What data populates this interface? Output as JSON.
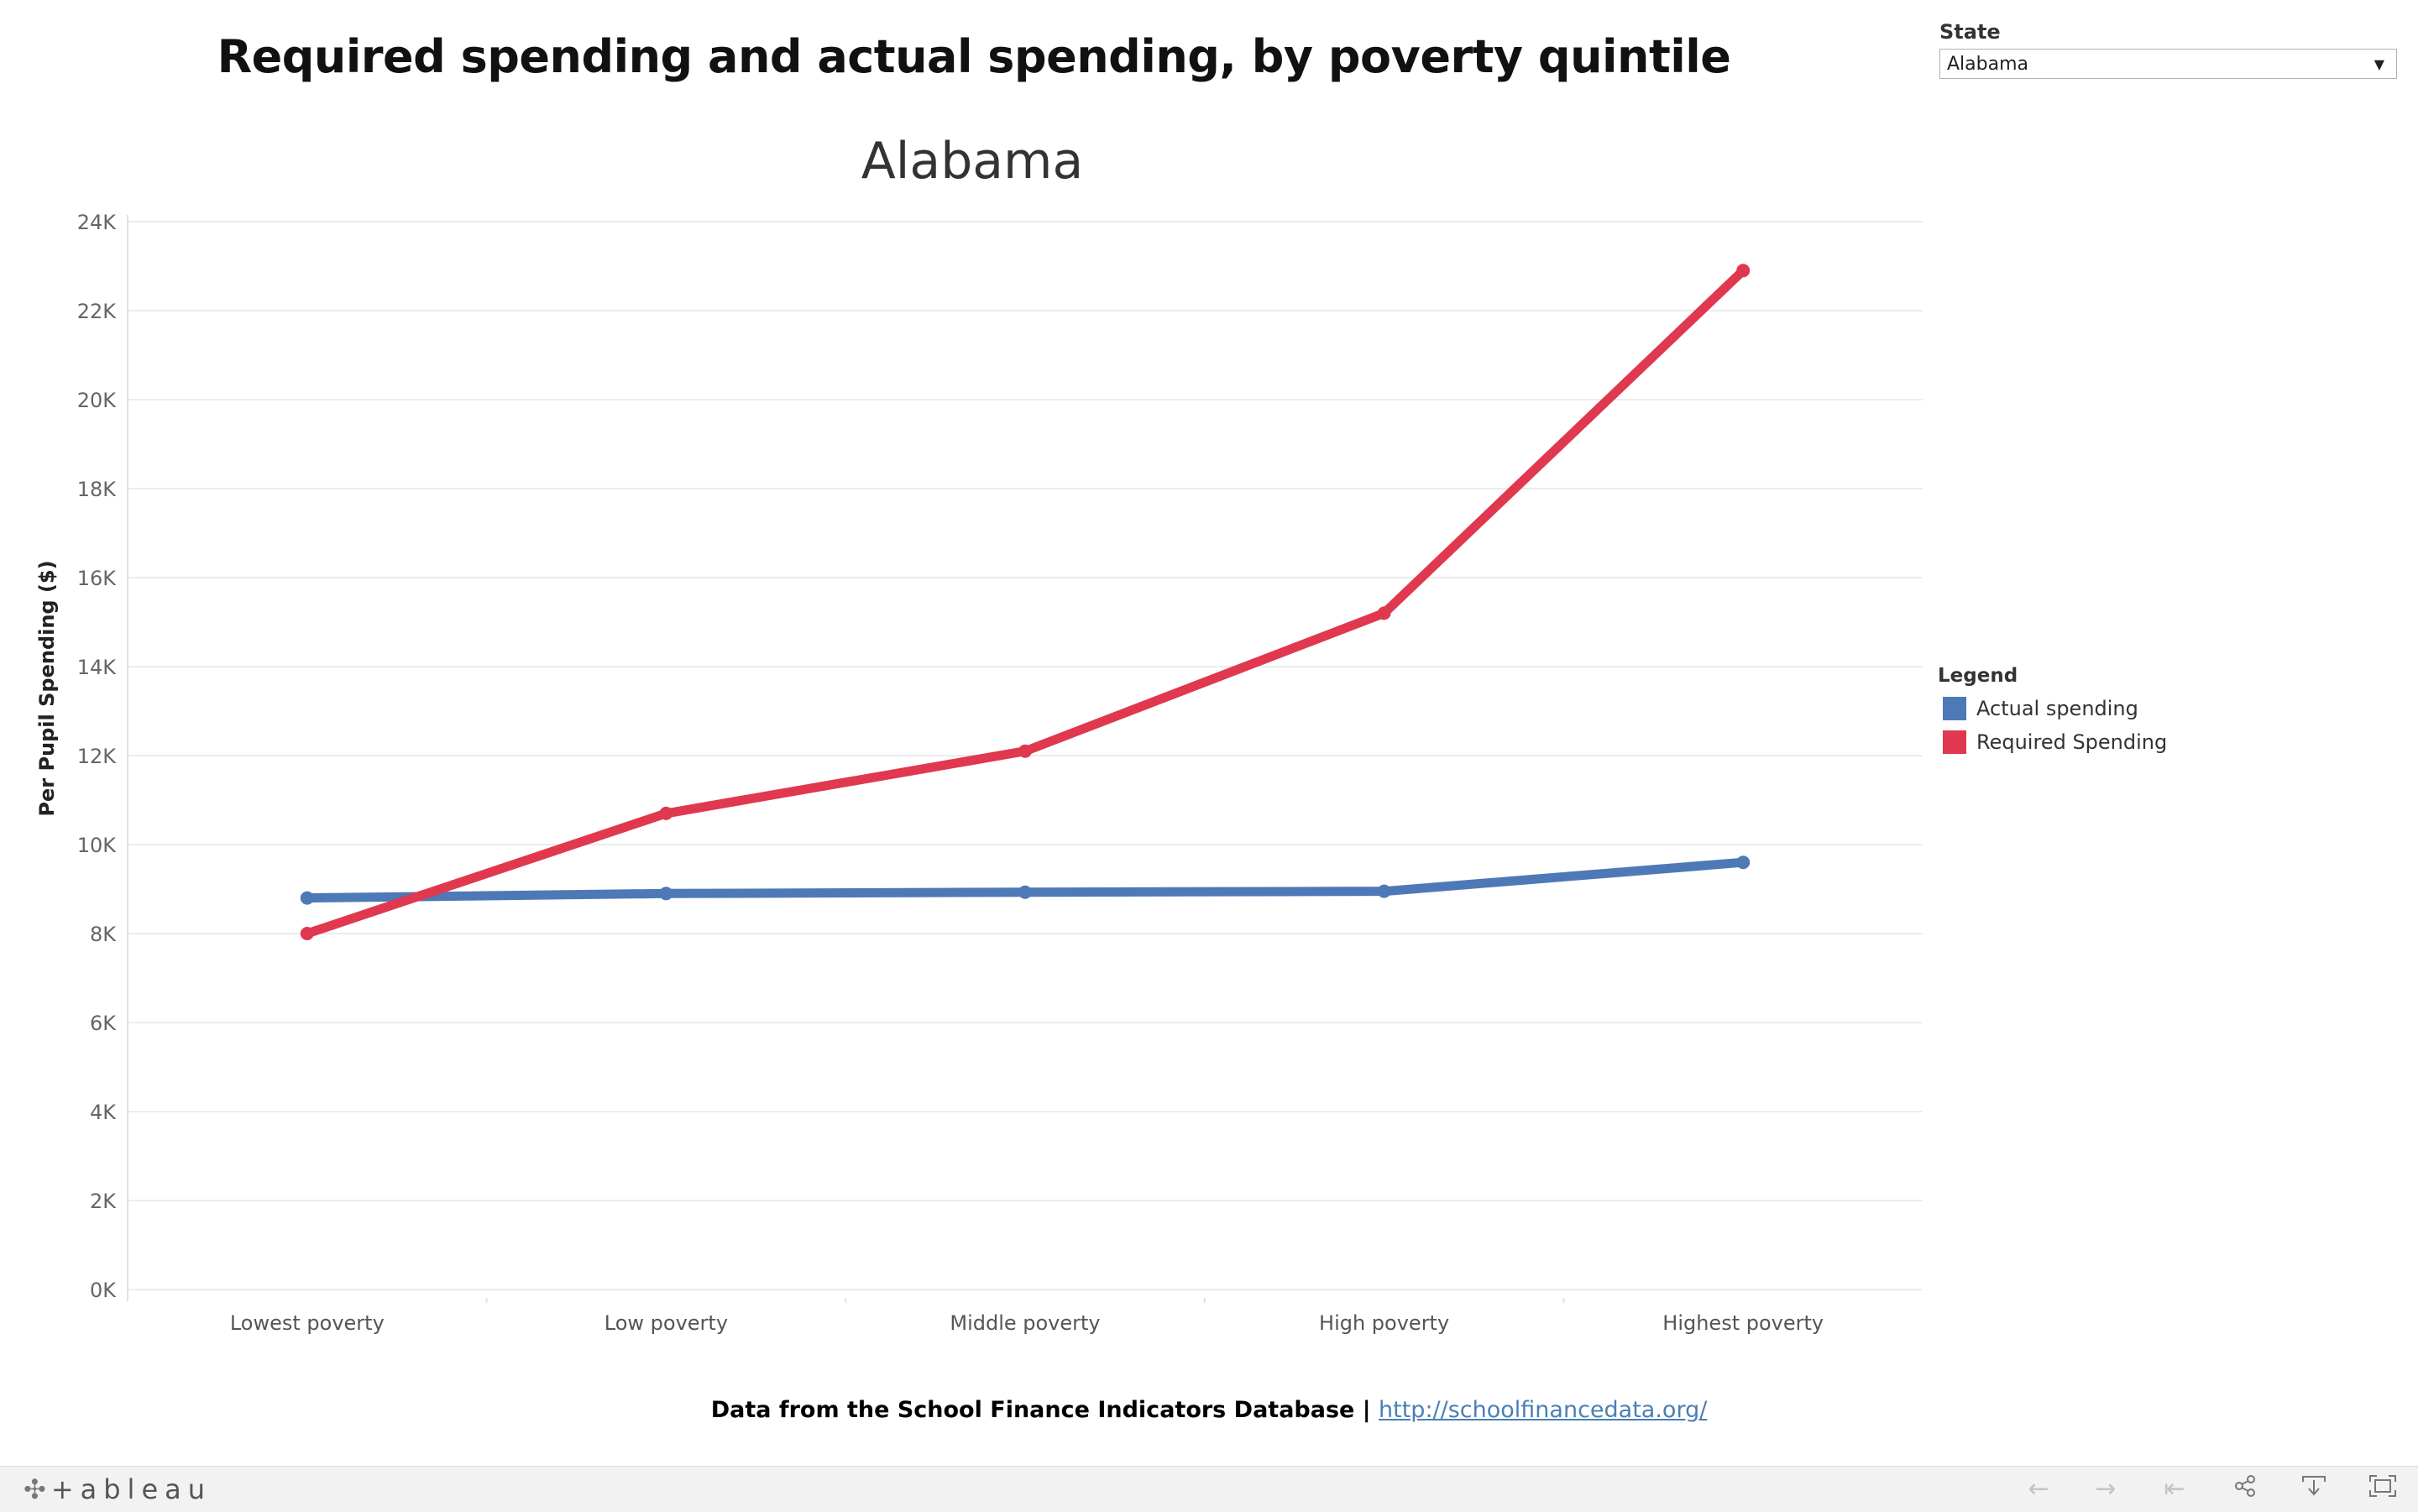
{
  "title": "Required spending and actual spending, by poverty quintile",
  "filter": {
    "label": "State",
    "selected": "Alabama"
  },
  "legend": {
    "title": "Legend",
    "items": [
      {
        "label": "Actual spending",
        "color": "#4e79b7"
      },
      {
        "label": "Required Spending",
        "color": "#e0384f"
      }
    ]
  },
  "footer": {
    "text": "Data from the School Finance Indicators Database | ",
    "link": "http://schoolfinancedata.org/"
  },
  "toolbar": {
    "logo_text": "+ableau",
    "buttons": [
      "back-icon",
      "forward-icon",
      "revert-icon",
      "share-icon",
      "download-icon",
      "fullscreen-icon"
    ]
  },
  "chart_data": {
    "type": "line",
    "title": "Alabama",
    "xlabel": "",
    "ylabel": "Per Pupil Spending ($)",
    "categories": [
      "Lowest poverty",
      "Low poverty",
      "Middle poverty",
      "High poverty",
      "Highest poverty"
    ],
    "series": [
      {
        "name": "Actual spending",
        "color": "#4e79b7",
        "values": [
          8800,
          8900,
          8930,
          8950,
          9600
        ]
      },
      {
        "name": "Required Spending",
        "color": "#e0384f",
        "values": [
          8000,
          10700,
          12100,
          15200,
          22900
        ]
      }
    ],
    "ylim": [
      0,
      24000
    ],
    "yticks": [
      0,
      2000,
      4000,
      6000,
      8000,
      10000,
      12000,
      14000,
      16000,
      18000,
      20000,
      22000,
      24000
    ],
    "ytick_labels": [
      "0K",
      "2K",
      "4K",
      "6K",
      "8K",
      "10K",
      "12K",
      "14K",
      "16K",
      "18K",
      "20K",
      "22K",
      "24K"
    ],
    "grid": true,
    "legend_position": "right"
  }
}
